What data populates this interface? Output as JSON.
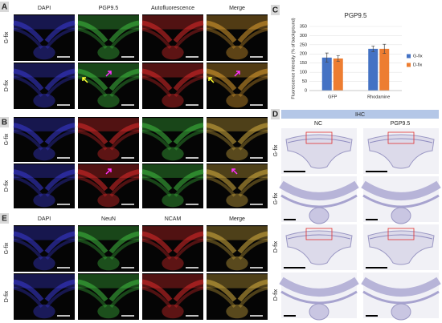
{
  "panels": {
    "A": {
      "label": "A",
      "columns": [
        "DAPI",
        "PGP9.5",
        "Autofluorescence",
        "Merge"
      ],
      "rows": [
        "G-fix",
        "D-fix"
      ]
    },
    "B": {
      "label": "B",
      "rows": [
        "G-fix",
        "D-fix"
      ]
    },
    "C": {
      "label": "C"
    },
    "D": {
      "label": "D",
      "header": "IHC",
      "columns": [
        "NC",
        "PGP9.5"
      ],
      "rows": [
        "G-fix",
        "G-fix",
        "D-fix",
        "D-fix"
      ]
    },
    "E": {
      "label": "E",
      "columns": [
        "DAPI",
        "NeuN",
        "NCAM",
        "Merge"
      ],
      "rows": [
        "G-fix",
        "D-fix"
      ]
    }
  },
  "chart_data": {
    "type": "bar",
    "title": "PGP9.5",
    "y_label": "Fluorescence intensity (% of background)",
    "categories": [
      "GFP",
      "Rhodamine"
    ],
    "series": [
      {
        "name": "G-fix",
        "color": "#4472c4",
        "values": [
          180,
          228
        ],
        "errors": [
          25,
          15
        ]
      },
      {
        "name": "D-fix",
        "color": "#ed7d31",
        "values": [
          175,
          228
        ],
        "errors": [
          15,
          25
        ]
      }
    ],
    "ylim": [
      0,
      350
    ],
    "yticks": [
      0,
      50,
      100,
      150,
      200,
      250,
      300,
      350
    ],
    "grid": true,
    "legend": "right"
  }
}
